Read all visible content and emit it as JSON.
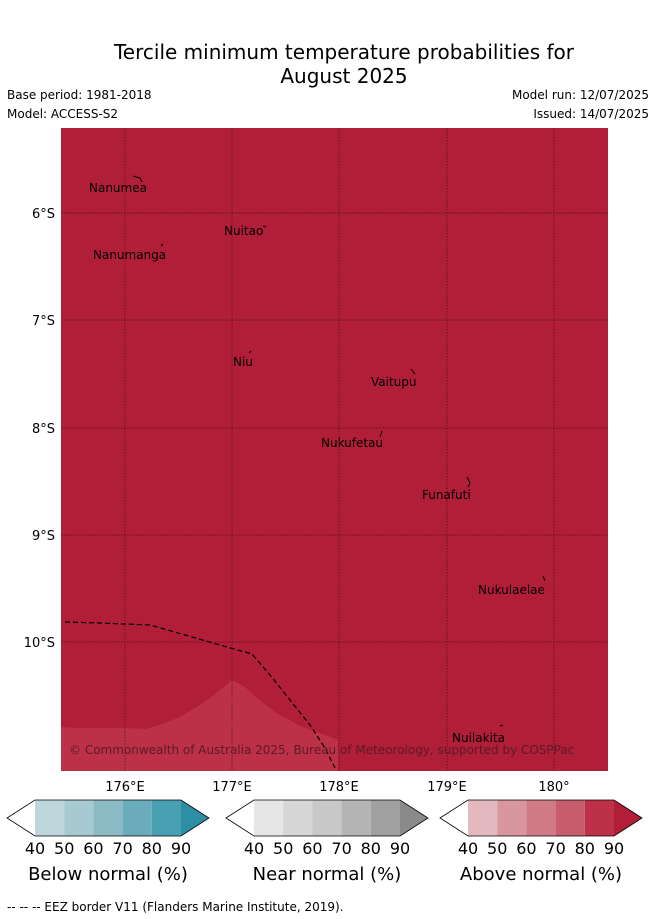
{
  "title_line1": "Tercile minimum temperature probabilities for",
  "title_line2": "August 2025",
  "base_period": "Base period: 1981-2018",
  "model": "Model: ACCESS-S2",
  "model_run": "Model run: 12/07/2025",
  "issued": "Issued: 14/07/2025",
  "map": {
    "background_color": "#b11e38",
    "lighter_region_color": "#bc3148",
    "lon_ticks": [
      "176°E",
      "177°E",
      "178°E",
      "179°E",
      "180°"
    ],
    "lat_ticks": [
      "6°S",
      "7°S",
      "8°S",
      "9°S",
      "10°S"
    ],
    "islands": [
      {
        "name": "Nanumea"
      },
      {
        "name": "Nuitao"
      },
      {
        "name": "Nanumanga"
      },
      {
        "name": "Niu"
      },
      {
        "name": "Vaitupu"
      },
      {
        "name": "Nukufetau"
      },
      {
        "name": "Funafuti"
      },
      {
        "name": "Nukulaelae"
      },
      {
        "name": "Nuilakita"
      }
    ],
    "copyright": "© Commonwealth of Australia 2025, Bureau of Meteorology, supported by COSPPac"
  },
  "colorbars": [
    {
      "title": "Below normal (%)",
      "ticks": [
        "40",
        "50",
        "60",
        "70",
        "80",
        "90"
      ],
      "colors": [
        "#ffffff",
        "#bdd7dd",
        "#a7cad0",
        "#8bbac5",
        "#6aacbb",
        "#48a0b2",
        "#2e8ea4"
      ]
    },
    {
      "title": "Near normal (%)",
      "ticks": [
        "40",
        "50",
        "60",
        "70",
        "80",
        "90"
      ],
      "colors": [
        "#ffffff",
        "#e6e6e6",
        "#d6d6d6",
        "#c8c8c8",
        "#b4b4b4",
        "#a0a0a0",
        "#8a8a8a"
      ]
    },
    {
      "title": "Above normal (%)",
      "ticks": [
        "40",
        "50",
        "60",
        "70",
        "80",
        "90"
      ],
      "colors": [
        "#ffffff",
        "#e3b8bf",
        "#d8979f",
        "#cf7a85",
        "#c65c6c",
        "#bc3148",
        "#b11e38"
      ]
    }
  ],
  "footnote": "--  --  -- EEZ border V11 (Flanders Marine Institute, 2019)."
}
